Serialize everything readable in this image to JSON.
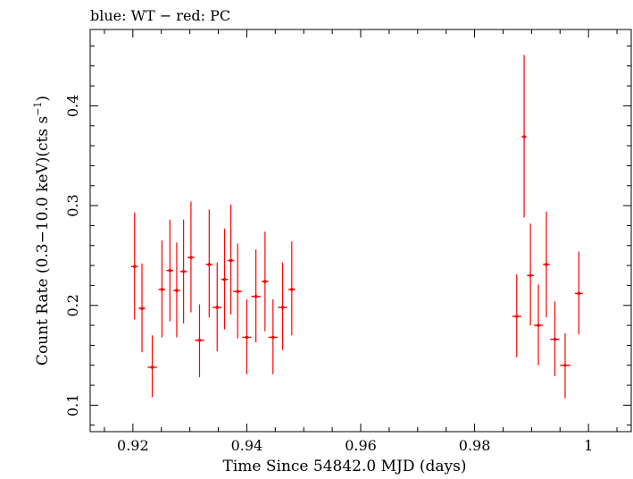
{
  "chart_data": {
    "type": "scatter",
    "title": "blue: WT − red: PC",
    "xlabel": "Time Since 54842.0 MJD (days)",
    "ylabel_parts": [
      "Count Rate (0.3−10.0 keV)(cts s",
      "−1",
      ")"
    ],
    "xlim": [
      0.9125,
      1.0075
    ],
    "ylim": [
      0.0735,
      0.4765
    ],
    "xticks": [
      0.92,
      0.94,
      0.96,
      0.98,
      1.0
    ],
    "xtick_labels": [
      "0.92",
      "0.94",
      "0.96",
      "0.98",
      "1"
    ],
    "yticks": [
      0.1,
      0.2,
      0.3,
      0.4
    ],
    "ytick_labels": [
      "0.1",
      "0.2",
      "0.3",
      "0.4"
    ],
    "series": [
      {
        "color": "#ff0000",
        "points": [
          {
            "x": 0.9203,
            "y": 0.239,
            "ylo": 0.186,
            "yhi": 0.293,
            "xerr": 0.0006
          },
          {
            "x": 0.9216,
            "y": 0.197,
            "ylo": 0.153,
            "yhi": 0.242,
            "xerr": 0.0006
          },
          {
            "x": 0.9234,
            "y": 0.138,
            "ylo": 0.108,
            "yhi": 0.17,
            "xerr": 0.0008
          },
          {
            "x": 0.9251,
            "y": 0.216,
            "ylo": 0.168,
            "yhi": 0.265,
            "xerr": 0.0006
          },
          {
            "x": 0.9265,
            "y": 0.235,
            "ylo": 0.184,
            "yhi": 0.286,
            "xerr": 0.0006
          },
          {
            "x": 0.9277,
            "y": 0.215,
            "ylo": 0.168,
            "yhi": 0.263,
            "xerr": 0.0006
          },
          {
            "x": 0.9289,
            "y": 0.234,
            "ylo": 0.182,
            "yhi": 0.286,
            "xerr": 0.0006
          },
          {
            "x": 0.9302,
            "y": 0.248,
            "ylo": 0.193,
            "yhi": 0.304,
            "xerr": 0.0006
          },
          {
            "x": 0.9317,
            "y": 0.165,
            "ylo": 0.128,
            "yhi": 0.201,
            "xerr": 0.0008
          },
          {
            "x": 0.9334,
            "y": 0.241,
            "ylo": 0.188,
            "yhi": 0.296,
            "xerr": 0.0006
          },
          {
            "x": 0.9348,
            "y": 0.198,
            "ylo": 0.154,
            "yhi": 0.243,
            "xerr": 0.0008
          },
          {
            "x": 0.9361,
            "y": 0.226,
            "ylo": 0.176,
            "yhi": 0.277,
            "xerr": 0.0006
          },
          {
            "x": 0.9372,
            "y": 0.245,
            "ylo": 0.191,
            "yhi": 0.301,
            "xerr": 0.0006
          },
          {
            "x": 0.9384,
            "y": 0.214,
            "ylo": 0.167,
            "yhi": 0.262,
            "xerr": 0.0008
          },
          {
            "x": 0.94,
            "y": 0.168,
            "ylo": 0.131,
            "yhi": 0.206,
            "xerr": 0.0008
          },
          {
            "x": 0.9416,
            "y": 0.209,
            "ylo": 0.163,
            "yhi": 0.256,
            "xerr": 0.0008
          },
          {
            "x": 0.9432,
            "y": 0.224,
            "ylo": 0.174,
            "yhi": 0.274,
            "xerr": 0.0006
          },
          {
            "x": 0.9446,
            "y": 0.168,
            "ylo": 0.131,
            "yhi": 0.206,
            "xerr": 0.0008
          },
          {
            "x": 0.9463,
            "y": 0.198,
            "ylo": 0.155,
            "yhi": 0.243,
            "xerr": 0.0008
          },
          {
            "x": 0.9479,
            "y": 0.216,
            "ylo": 0.17,
            "yhi": 0.264,
            "xerr": 0.0006
          },
          {
            "x": 0.9874,
            "y": 0.189,
            "ylo": 0.148,
            "yhi": 0.231,
            "xerr": 0.0008
          },
          {
            "x": 0.9887,
            "y": 0.369,
            "ylo": 0.288,
            "yhi": 0.451,
            "xerr": 0.0004
          },
          {
            "x": 0.9898,
            "y": 0.23,
            "ylo": 0.18,
            "yhi": 0.282,
            "xerr": 0.0006
          },
          {
            "x": 0.9912,
            "y": 0.18,
            "ylo": 0.14,
            "yhi": 0.221,
            "xerr": 0.0008
          },
          {
            "x": 0.9926,
            "y": 0.241,
            "ylo": 0.188,
            "yhi": 0.294,
            "xerr": 0.0006
          },
          {
            "x": 0.9941,
            "y": 0.166,
            "ylo": 0.129,
            "yhi": 0.204,
            "xerr": 0.0008
          },
          {
            "x": 0.9959,
            "y": 0.14,
            "ylo": 0.107,
            "yhi": 0.172,
            "xerr": 0.0009
          },
          {
            "x": 0.9983,
            "y": 0.212,
            "ylo": 0.171,
            "yhi": 0.254,
            "xerr": 0.0007
          }
        ]
      }
    ],
    "grid": false,
    "axis_color": "#000000"
  }
}
